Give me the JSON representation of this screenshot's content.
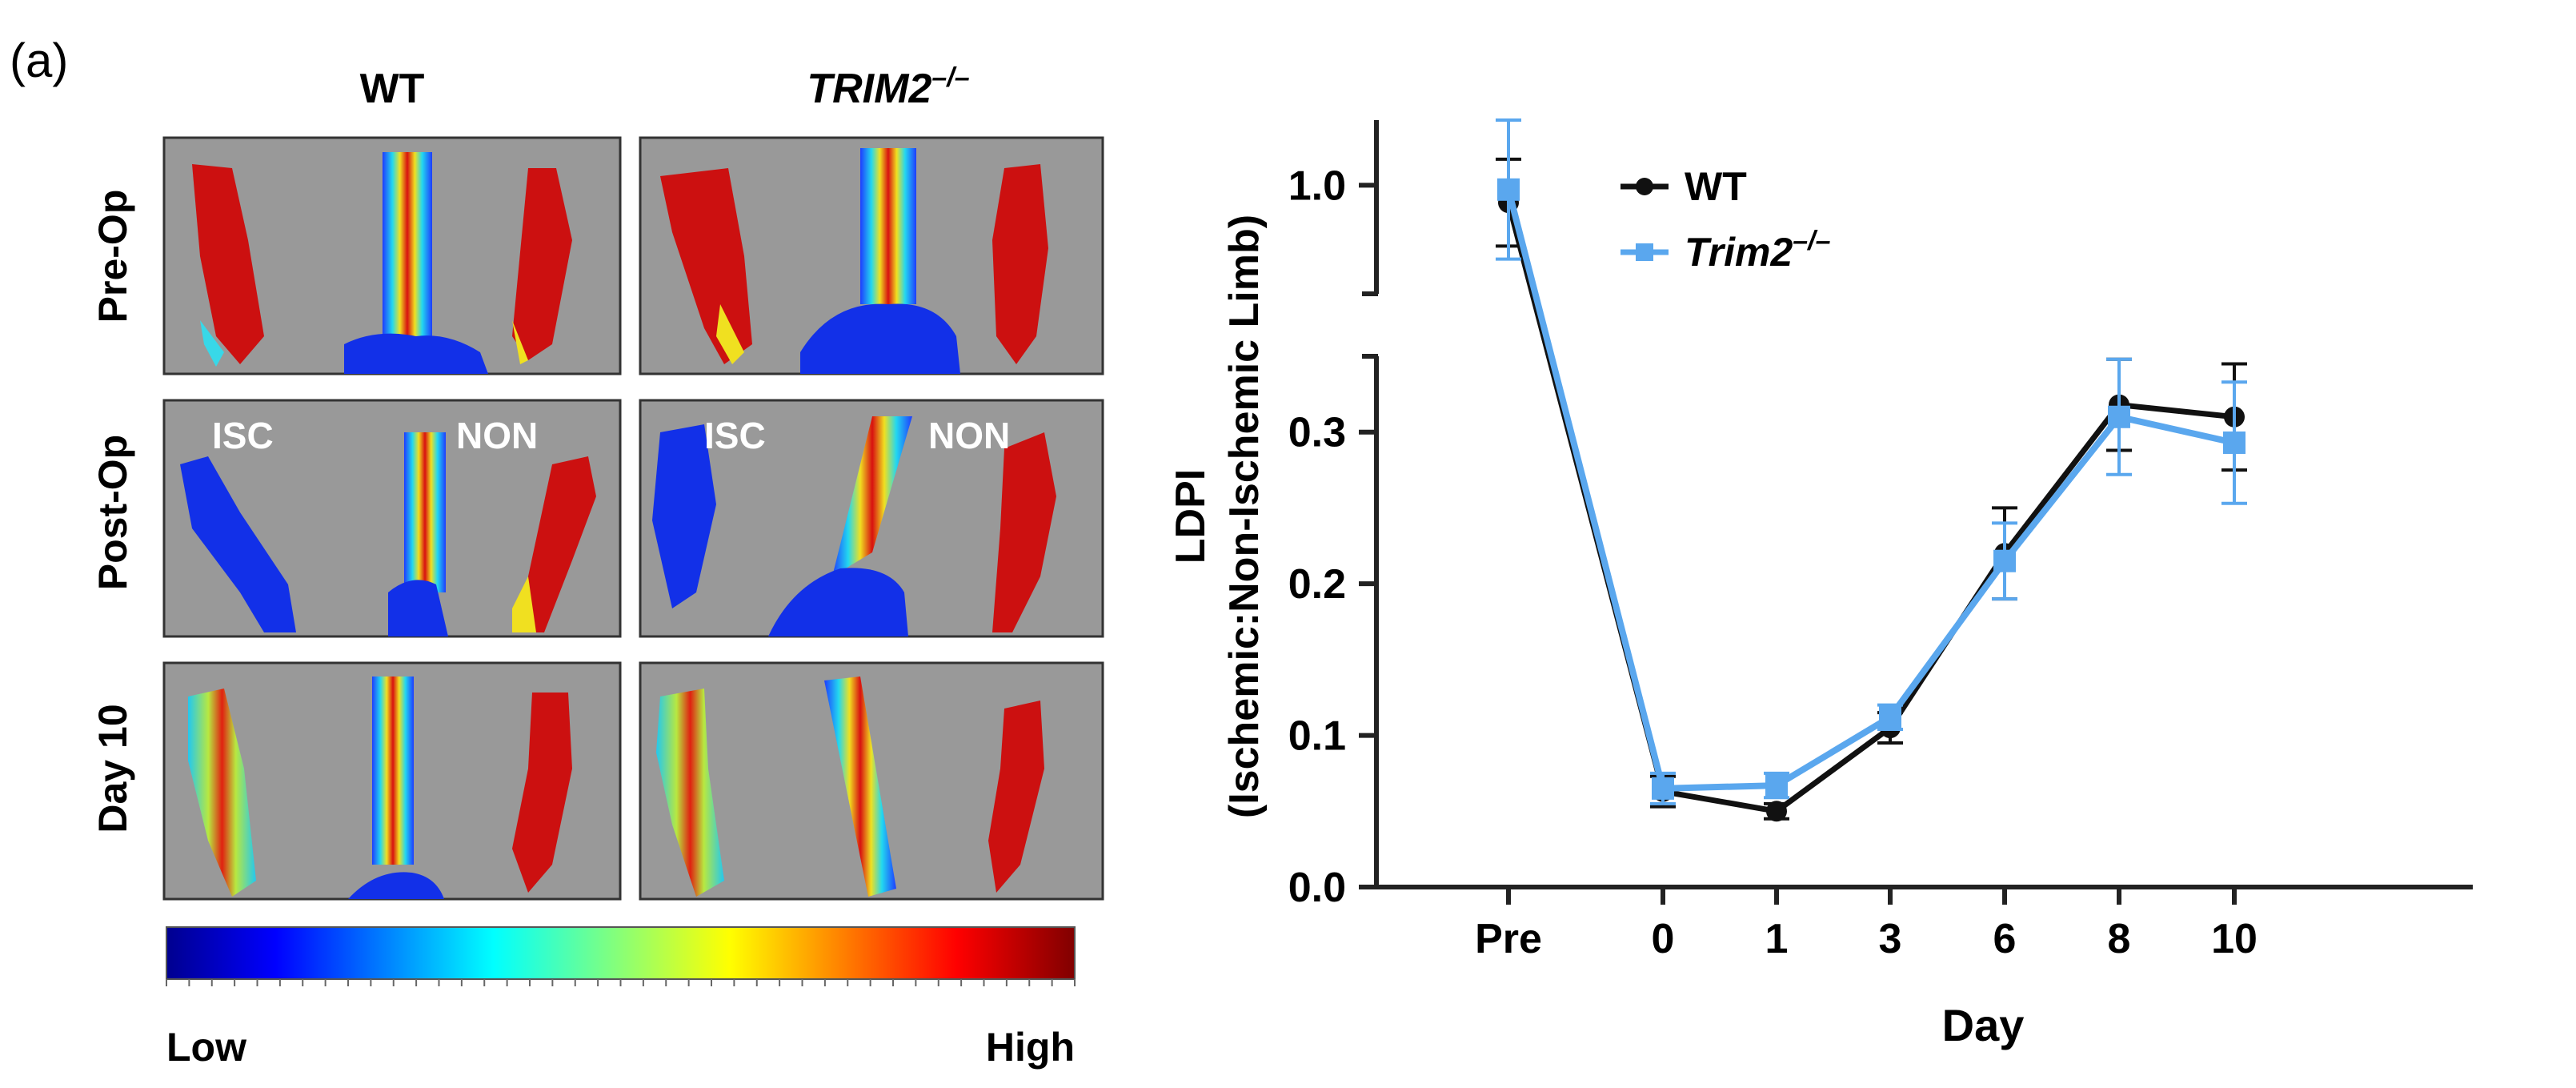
{
  "panel_label": "(a)",
  "images": {
    "col_headers": [
      "WT",
      "TRIM2"
    ],
    "col_header_sup": [
      "",
      "–/–"
    ],
    "row_labels": [
      "Pre-Op",
      "Post-Op",
      "Day 10"
    ],
    "limb_labels": [
      "ISC",
      "NON"
    ],
    "colorbar": {
      "low": "Low",
      "high": "High"
    }
  },
  "colors": {
    "wt": "#111111",
    "trim2": "#5aa7ee",
    "panel_bg": "#999999",
    "panel_border": "#333333"
  },
  "chart_data": {
    "type": "line",
    "title": "",
    "xlabel": "Day",
    "ylabel_line1": "LDPI",
    "ylabel_line2": "(Ischemic:Non-Ischemic Limb)",
    "categories": [
      "Pre",
      "0",
      "1",
      "3",
      "6",
      "8",
      "10"
    ],
    "y_ticks_lower": [
      "0.0",
      "0.1",
      "0.2",
      "0.3"
    ],
    "y_ticks_upper": [
      "1.0"
    ],
    "ylim_lower": [
      0,
      0.35
    ],
    "ylim_upper": [
      0.75,
      1.15
    ],
    "series": [
      {
        "name": "WT",
        "name_sup": "",
        "marker": "circle",
        "values": [
          0.96,
          0.063,
          0.05,
          0.105,
          0.22,
          0.318,
          0.31
        ],
        "errors": [
          0.1,
          0.01,
          0.005,
          0.01,
          0.03,
          0.03,
          0.035
        ]
      },
      {
        "name": "Trim2",
        "name_sup": "–/–",
        "marker": "square",
        "values": [
          0.99,
          0.065,
          0.067,
          0.112,
          0.215,
          0.31,
          0.293
        ],
        "errors": [
          0.16,
          0.01,
          0.008,
          0.008,
          0.025,
          0.038,
          0.04
        ]
      }
    ]
  }
}
